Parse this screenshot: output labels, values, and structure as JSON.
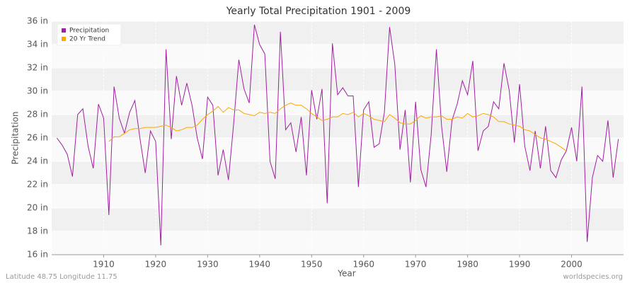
{
  "chart_data": {
    "type": "line",
    "title": "Yearly Total Precipitation 1901 - 2009",
    "x_label": "Year",
    "y_label": "Precipitation",
    "footer_left": "Latitude 48.75 Longitude 11.75",
    "footer_right": "worldspecies.org",
    "legend": "top-left",
    "grid": true,
    "xlim": [
      1900,
      2010
    ],
    "xticks": [
      1910,
      1920,
      1930,
      1940,
      1950,
      1960,
      1970,
      1980,
      1990,
      2000
    ],
    "ylim": [
      16,
      36
    ],
    "yticks": [
      {
        "value": 16,
        "label": "16 in"
      },
      {
        "value": 18,
        "label": "18 in"
      },
      {
        "value": 20,
        "label": "20 in"
      },
      {
        "value": 22,
        "label": "22 in"
      },
      {
        "value": 24,
        "label": "24 in"
      },
      {
        "value": 26,
        "label": "26 in"
      },
      {
        "value": 28,
        "label": "28 in"
      },
      {
        "value": 30,
        "label": "30 in"
      },
      {
        "value": 32,
        "label": "32 in"
      },
      {
        "value": 34,
        "label": "34 in"
      },
      {
        "value": 36,
        "label": "36 in"
      }
    ],
    "x": [
      1901,
      1902,
      1903,
      1904,
      1905,
      1906,
      1907,
      1908,
      1909,
      1910,
      1911,
      1912,
      1913,
      1914,
      1915,
      1916,
      1917,
      1918,
      1919,
      1920,
      1921,
      1922,
      1923,
      1924,
      1925,
      1926,
      1927,
      1928,
      1929,
      1930,
      1931,
      1932,
      1933,
      1934,
      1935,
      1936,
      1937,
      1938,
      1939,
      1940,
      1941,
      1942,
      1943,
      1944,
      1945,
      1946,
      1947,
      1948,
      1949,
      1950,
      1951,
      1952,
      1953,
      1954,
      1955,
      1956,
      1957,
      1958,
      1959,
      1960,
      1961,
      1962,
      1963,
      1964,
      1965,
      1966,
      1967,
      1968,
      1969,
      1970,
      1971,
      1972,
      1973,
      1974,
      1975,
      1976,
      1977,
      1978,
      1979,
      1980,
      1981,
      1982,
      1983,
      1984,
      1985,
      1986,
      1987,
      1988,
      1989,
      1990,
      1991,
      1992,
      1993,
      1994,
      1995,
      1996,
      1997,
      1998,
      1999,
      2000,
      2001,
      2002,
      2003,
      2004,
      2005,
      2006,
      2007,
      2008,
      2009
    ],
    "series": [
      {
        "name": "Precipitation",
        "color": "#a020a0",
        "values": [
          26.0,
          25.4,
          24.6,
          22.7,
          28.0,
          28.5,
          25.3,
          23.4,
          28.9,
          27.7,
          19.4,
          30.4,
          27.7,
          26.4,
          28.2,
          29.2,
          25.9,
          23.0,
          26.6,
          25.7,
          16.8,
          33.6,
          25.9,
          31.3,
          28.8,
          30.7,
          28.8,
          26.0,
          24.2,
          29.5,
          28.8,
          22.8,
          25.0,
          22.4,
          27.2,
          32.7,
          30.2,
          29.0,
          35.7,
          34.0,
          33.2,
          24.0,
          22.5,
          35.1,
          26.7,
          27.3,
          24.8,
          27.8,
          22.8,
          30.1,
          27.6,
          30.2,
          20.4,
          34.1,
          29.7,
          30.3,
          29.6,
          29.6,
          21.8,
          28.4,
          29.1,
          25.2,
          25.5,
          28.2,
          35.5,
          32.3,
          25.0,
          28.4,
          22.2,
          29.1,
          23.3,
          21.8,
          26.3,
          33.6,
          27.0,
          23.1,
          27.5,
          28.9,
          30.9,
          29.7,
          32.6,
          24.9,
          26.6,
          27.0,
          29.1,
          28.5,
          32.4,
          30.1,
          25.6,
          30.6,
          25.3,
          23.2,
          26.6,
          23.4,
          27.0,
          23.2,
          22.6,
          24.1,
          24.9,
          26.9,
          24.0,
          30.4,
          17.1,
          22.6,
          24.5,
          24.0,
          27.5,
          22.6,
          25.9
        ]
      },
      {
        "name": "20 Yr Trend",
        "color": "#ffa500",
        "values": [
          null,
          null,
          null,
          null,
          null,
          null,
          null,
          null,
          null,
          null,
          25.7,
          26.1,
          26.1,
          26.4,
          26.7,
          26.8,
          26.8,
          26.9,
          26.9,
          26.9,
          27.0,
          27.1,
          26.9,
          26.6,
          26.7,
          26.9,
          26.9,
          27.1,
          27.6,
          28.0,
          28.3,
          28.7,
          28.2,
          28.6,
          28.4,
          28.4,
          28.1,
          28.0,
          27.9,
          28.2,
          28.1,
          28.2,
          28.1,
          28.5,
          28.8,
          29.0,
          28.8,
          28.8,
          28.5,
          28.1,
          27.8,
          27.5,
          27.6,
          27.8,
          27.8,
          28.1,
          28.0,
          28.2,
          27.8,
          28.1,
          27.9,
          27.6,
          27.5,
          27.4,
          28.0,
          27.7,
          27.3,
          27.2,
          27.2,
          27.5,
          27.9,
          27.7,
          27.8,
          27.8,
          27.9,
          27.6,
          27.6,
          27.8,
          27.7,
          28.1,
          27.8,
          27.9,
          28.1,
          28.0,
          27.8,
          27.4,
          27.4,
          27.2,
          27.1,
          27.0,
          26.7,
          26.6,
          26.3,
          26.0,
          25.9,
          25.7,
          25.5,
          25.2,
          24.9,
          null,
          null,
          null,
          null,
          null,
          null,
          null,
          null,
          null,
          null
        ]
      }
    ]
  }
}
